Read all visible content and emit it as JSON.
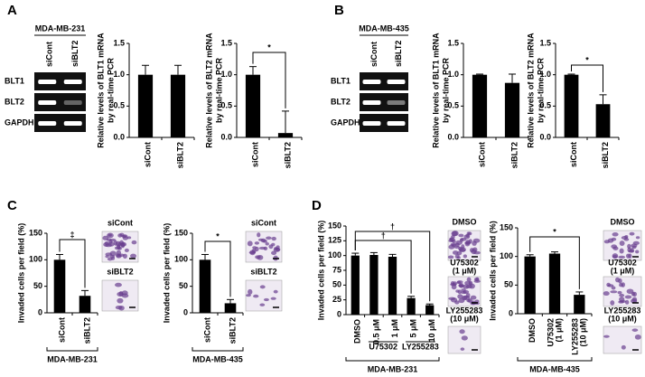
{
  "panel_labels": [
    "A",
    "B",
    "C",
    "D"
  ],
  "gels": [
    {
      "cell_line": "MDA-MB-231",
      "lanes": [
        "siCont",
        "siBLT2"
      ],
      "genes": [
        "BLT1",
        "BLT2",
        "GAPDH"
      ]
    },
    {
      "cell_line": "MDA-MB-435",
      "lanes": [
        "siCont",
        "siBLT2"
      ],
      "genes": [
        "BLT1",
        "BLT2",
        "GAPDH"
      ]
    }
  ],
  "micrographs": [
    {
      "labels": [
        "siCont",
        "siBLT2"
      ]
    },
    {
      "labels": [
        "siCont",
        "siBLT2"
      ]
    },
    {
      "labels": [
        "DMSO",
        "U75302",
        "(1 μM)",
        "LY255283",
        "(10 μM)"
      ]
    },
    {
      "labels": [
        "DMSO",
        "U75302",
        "(1 μM)",
        "LY255283",
        "(10 μM)"
      ]
    }
  ],
  "chart_data": [
    {
      "type": "bar",
      "y_label": [
        "Relative levels of BLT1 mRNA",
        "by real-time PCR"
      ],
      "categories": [
        "siCont",
        "siBLT2"
      ],
      "values": [
        1.0,
        1.0
      ],
      "errors": [
        0.15,
        0.15
      ],
      "color": "#000000",
      "ylim": [
        0,
        1.5
      ],
      "yticks": [
        {
          "value": 0,
          "label": "0.0"
        },
        0.5,
        {
          "value": 1,
          "label": "1.0"
        },
        1.5
      ],
      "annotations": []
    },
    {
      "type": "bar",
      "y_label": [
        "Relative levels of BLT2 mRNA",
        "by real-time PCR"
      ],
      "categories": [
        "siCont",
        "siBLT2"
      ],
      "values": [
        1.0,
        0.07
      ],
      "errors": [
        0.13,
        0.35
      ],
      "color": "#000000",
      "ylim": [
        0,
        1.5
      ],
      "yticks": [
        {
          "value": 0,
          "label": "0.0"
        },
        0.5,
        {
          "value": 1,
          "label": "1.0"
        },
        1.5
      ],
      "annotations": [
        "*"
      ]
    },
    {
      "type": "bar",
      "y_label": [
        "Relative levels of BLT1 mRNA",
        "by real-time PCR"
      ],
      "categories": [
        "siCont",
        "siBLT2"
      ],
      "values": [
        1.0,
        0.87
      ],
      "errors": [
        0.01,
        0.14
      ],
      "color": "#000000",
      "ylim": [
        0,
        1.5
      ],
      "yticks": [
        {
          "value": 0,
          "label": "0.0"
        },
        0.5,
        {
          "value": 1,
          "label": "1.0"
        },
        1.5
      ],
      "annotations": []
    },
    {
      "type": "bar",
      "y_label": [
        "Relative levels of BLT2 mRNA",
        "by real-time PCR"
      ],
      "categories": [
        "siCont",
        "siBLT2"
      ],
      "values": [
        1.0,
        0.53
      ],
      "errors": [
        0.01,
        0.15
      ],
      "color": "#000000",
      "ylim": [
        0,
        1.5
      ],
      "yticks": [
        {
          "value": 0,
          "label": "0.0"
        },
        0.5,
        {
          "value": 1,
          "label": "1.0"
        },
        1.5
      ],
      "annotations": [
        "*"
      ]
    },
    {
      "type": "bar",
      "y_label": [
        "Invaded cells per field (%)"
      ],
      "categories": [
        "siCont",
        "siBLT2"
      ],
      "values": [
        100,
        32
      ],
      "errors": [
        10,
        10
      ],
      "color": "#000000",
      "ylim": [
        0,
        150
      ],
      "yticks": [
        0,
        50,
        100,
        150
      ],
      "annotations": [
        "‡"
      ],
      "cell_line": "MDA-MB-231"
    },
    {
      "type": "bar",
      "y_label": [
        "Invaded cells per field (%)"
      ],
      "categories": [
        "siCont",
        "siBLT2"
      ],
      "values": [
        100,
        18
      ],
      "errors": [
        10,
        7
      ],
      "color": "#000000",
      "ylim": [
        0,
        150
      ],
      "yticks": [
        0,
        50,
        100,
        150
      ],
      "annotations": [
        "*"
      ],
      "cell_line": "MDA-MB-435"
    },
    {
      "type": "bar",
      "y_label": [
        "Invaded cells per field (%)"
      ],
      "categories": [
        "DMSO",
        "0.5 μM",
        "1 μM",
        "5 μM",
        "10 μM"
      ],
      "values": [
        100,
        101,
        98,
        28,
        16
      ],
      "errors": [
        4,
        4,
        4,
        3,
        2
      ],
      "color": "#000000",
      "ylim": [
        0,
        150
      ],
      "yticks": [
        0,
        25,
        50,
        75,
        100,
        125,
        150
      ],
      "annotations": [
        "†",
        "†"
      ],
      "group_labels": [
        "U75302",
        "LY255283"
      ],
      "cell_line": "MDA-MB-231"
    },
    {
      "type": "bar",
      "y_label": [
        "Invaded cells per field (%)"
      ],
      "categories": [
        "DMSO",
        [
          "U75302",
          "(1 μM)"
        ],
        [
          "LY255283",
          "(10 μM)"
        ]
      ],
      "values": [
        100,
        105,
        33
      ],
      "errors": [
        3,
        3,
        5
      ],
      "color": "#000000",
      "ylim": [
        0,
        150
      ],
      "yticks": [
        0,
        50,
        100,
        150
      ],
      "annotations": [
        "*"
      ],
      "cell_line": "MDA-MB-435"
    }
  ]
}
